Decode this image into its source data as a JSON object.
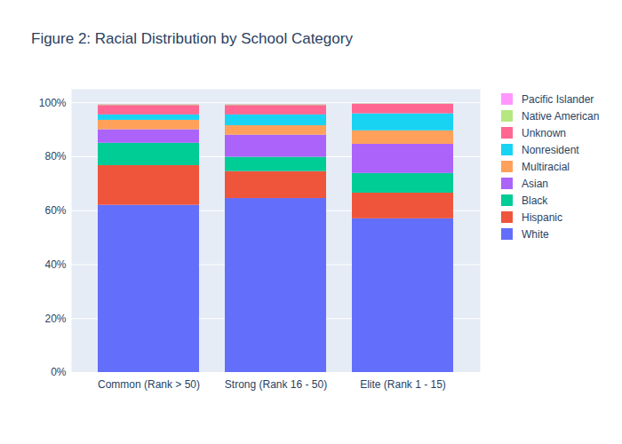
{
  "chart_data": {
    "type": "bar",
    "stacked": true,
    "title": "Figure 2: Racial Distribution by School Category",
    "categories": [
      "Common (Rank > 50)",
      "Strong (Rank 16 - 50)",
      "Elite (Rank 1 - 15)"
    ],
    "series": [
      {
        "name": "White",
        "color": "#636efa",
        "values": [
          62,
          64.5,
          57
        ]
      },
      {
        "name": "Hispanic",
        "color": "#EF553B",
        "values": [
          14.7,
          10,
          9.5
        ]
      },
      {
        "name": "Black",
        "color": "#00cc96",
        "values": [
          8.3,
          5.3,
          7.3
        ]
      },
      {
        "name": "Asian",
        "color": "#ab63fa",
        "values": [
          5,
          8.2,
          10.8
        ]
      },
      {
        "name": "Multiracial",
        "color": "#FFA15A",
        "values": [
          3.5,
          3.5,
          5
        ]
      },
      {
        "name": "Nonresident",
        "color": "#19d3f3",
        "values": [
          2,
          4,
          6.3
        ]
      },
      {
        "name": "Unknown",
        "color": "#FF6692",
        "values": [
          3.5,
          3.5,
          3.5
        ]
      },
      {
        "name": "Native American",
        "color": "#B6E880",
        "values": [
          0.3,
          0.3,
          0.2
        ]
      },
      {
        "name": "Pacific Islander",
        "color": "#FF97FF",
        "values": [
          0.1,
          0.1,
          0.1
        ]
      }
    ],
    "ylim": [
      0,
      105
    ],
    "yticks": [
      {
        "value": 0,
        "label": "0%"
      },
      {
        "value": 20,
        "label": "20%"
      },
      {
        "value": 40,
        "label": "40%"
      },
      {
        "value": 60,
        "label": "60%"
      },
      {
        "value": 80,
        "label": "80%"
      },
      {
        "value": 100,
        "label": "100%"
      }
    ],
    "grid": true,
    "legend": "right"
  }
}
